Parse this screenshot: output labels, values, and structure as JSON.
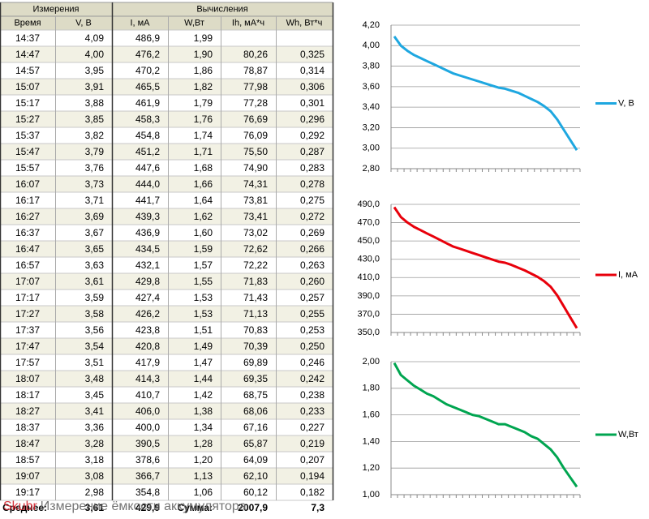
{
  "table": {
    "group_headers": [
      "Измерения",
      "Вычисления"
    ],
    "columns": [
      "Время",
      "V, В",
      "I, мА",
      "W,Вт",
      "Ih, мА*ч",
      "Wh, Вт*ч"
    ],
    "rows": [
      [
        "14:37",
        "4,09",
        "486,9",
        "1,99",
        null,
        null
      ],
      [
        "14:47",
        "4,00",
        "476,2",
        "1,90",
        "80,26",
        "0,325"
      ],
      [
        "14:57",
        "3,95",
        "470,2",
        "1,86",
        "78,87",
        "0,314"
      ],
      [
        "15:07",
        "3,91",
        "465,5",
        "1,82",
        "77,98",
        "0,306"
      ],
      [
        "15:17",
        "3,88",
        "461,9",
        "1,79",
        "77,28",
        "0,301"
      ],
      [
        "15:27",
        "3,85",
        "458,3",
        "1,76",
        "76,69",
        "0,296"
      ],
      [
        "15:37",
        "3,82",
        "454,8",
        "1,74",
        "76,09",
        "0,292"
      ],
      [
        "15:47",
        "3,79",
        "451,2",
        "1,71",
        "75,50",
        "0,287"
      ],
      [
        "15:57",
        "3,76",
        "447,6",
        "1,68",
        "74,90",
        "0,283"
      ],
      [
        "16:07",
        "3,73",
        "444,0",
        "1,66",
        "74,31",
        "0,278"
      ],
      [
        "16:17",
        "3,71",
        "441,7",
        "1,64",
        "73,81",
        "0,275"
      ],
      [
        "16:27",
        "3,69",
        "439,3",
        "1,62",
        "73,41",
        "0,272"
      ],
      [
        "16:37",
        "3,67",
        "436,9",
        "1,60",
        "73,02",
        "0,269"
      ],
      [
        "16:47",
        "3,65",
        "434,5",
        "1,59",
        "72,62",
        "0,266"
      ],
      [
        "16:57",
        "3,63",
        "432,1",
        "1,57",
        "72,22",
        "0,263"
      ],
      [
        "17:07",
        "3,61",
        "429,8",
        "1,55",
        "71,83",
        "0,260"
      ],
      [
        "17:17",
        "3,59",
        "427,4",
        "1,53",
        "71,43",
        "0,257"
      ],
      [
        "17:27",
        "3,58",
        "426,2",
        "1,53",
        "71,13",
        "0,255"
      ],
      [
        "17:37",
        "3,56",
        "423,8",
        "1,51",
        "70,83",
        "0,253"
      ],
      [
        "17:47",
        "3,54",
        "420,8",
        "1,49",
        "70,39",
        "0,250"
      ],
      [
        "17:57",
        "3,51",
        "417,9",
        "1,47",
        "69,89",
        "0,246"
      ],
      [
        "18:07",
        "3,48",
        "414,3",
        "1,44",
        "69,35",
        "0,242"
      ],
      [
        "18:17",
        "3,45",
        "410,7",
        "1,42",
        "68,75",
        "0,238"
      ],
      [
        "18:27",
        "3,41",
        "406,0",
        "1,38",
        "68,06",
        "0,233"
      ],
      [
        "18:37",
        "3,36",
        "400,0",
        "1,34",
        "67,16",
        "0,227"
      ],
      [
        "18:47",
        "3,28",
        "390,5",
        "1,28",
        "65,87",
        "0,219"
      ],
      [
        "18:57",
        "3,18",
        "378,6",
        "1,20",
        "64,09",
        "0,207"
      ],
      [
        "19:07",
        "3,08",
        "366,7",
        "1,13",
        "62,10",
        "0,194"
      ],
      [
        "19:17",
        "2,98",
        "354,8",
        "1,06",
        "60,12",
        "0,182"
      ]
    ],
    "footer": [
      "Среднее:",
      "3,61",
      "429,9",
      "Сумма:",
      "2007,9",
      "7,3"
    ]
  },
  "watermark": {
    "brand": "Skubr",
    "text": "Измерение ёмкости аккумулятора"
  },
  "chart_data": [
    {
      "type": "line",
      "categories": [
        null,
        null,
        null,
        null,
        null,
        null,
        null,
        null,
        null,
        null,
        null,
        null,
        null,
        null,
        null,
        null,
        null,
        null,
        null,
        null,
        null,
        null,
        null,
        null,
        null,
        null,
        null,
        null,
        null
      ],
      "series": [
        {
          "name": "V, В",
          "color": "#1ea7e0",
          "values": [
            4.09,
            4.0,
            3.95,
            3.91,
            3.88,
            3.85,
            3.82,
            3.79,
            3.76,
            3.73,
            3.71,
            3.69,
            3.67,
            3.65,
            3.63,
            3.61,
            3.59,
            3.58,
            3.56,
            3.54,
            3.51,
            3.48,
            3.45,
            3.41,
            3.36,
            3.28,
            3.18,
            3.08,
            2.98
          ]
        }
      ],
      "ylim": [
        2.8,
        4.2
      ],
      "yticks": [
        {
          "value": 2.8,
          "label": "2,80"
        },
        {
          "value": 3.0,
          "label": "3,00"
        },
        {
          "value": 3.2,
          "label": "3,20"
        },
        {
          "value": 3.4,
          "label": "3,40"
        },
        {
          "value": 3.6,
          "label": "3,60"
        },
        {
          "value": 3.8,
          "label": "3,80"
        },
        {
          "value": 4.0,
          "label": "4,00"
        },
        {
          "value": 4.2,
          "label": "4,20"
        }
      ],
      "grid": true,
      "legend": "right"
    },
    {
      "type": "line",
      "categories": [
        null,
        null,
        null,
        null,
        null,
        null,
        null,
        null,
        null,
        null,
        null,
        null,
        null,
        null,
        null,
        null,
        null,
        null,
        null,
        null,
        null,
        null,
        null,
        null,
        null,
        null,
        null,
        null,
        null
      ],
      "series": [
        {
          "name": "I, мА",
          "color": "#e8000b",
          "values": [
            486.9,
            476.2,
            470.2,
            465.5,
            461.9,
            458.3,
            454.8,
            451.2,
            447.6,
            444.0,
            441.7,
            439.3,
            436.9,
            434.5,
            432.1,
            429.8,
            427.4,
            426.2,
            423.8,
            420.8,
            417.9,
            414.3,
            410.7,
            406.0,
            400.0,
            390.5,
            378.6,
            366.7,
            354.8
          ]
        }
      ],
      "ylim": [
        350,
        490
      ],
      "yticks": [
        {
          "value": 350,
          "label": "350,0"
        },
        {
          "value": 370,
          "label": "370,0"
        },
        {
          "value": 390,
          "label": "390,0"
        },
        {
          "value": 410,
          "label": "410,0"
        },
        {
          "value": 430,
          "label": "430,0"
        },
        {
          "value": 450,
          "label": "450,0"
        },
        {
          "value": 470,
          "label": "470,0"
        },
        {
          "value": 490,
          "label": "490,0"
        }
      ],
      "grid": true,
      "legend": "right"
    },
    {
      "type": "line",
      "categories": [
        null,
        null,
        null,
        null,
        null,
        null,
        null,
        null,
        null,
        null,
        null,
        null,
        null,
        null,
        null,
        null,
        null,
        null,
        null,
        null,
        null,
        null,
        null,
        null,
        null,
        null,
        null,
        null,
        null
      ],
      "series": [
        {
          "name": "W,Вт",
          "color": "#00a550",
          "values": [
            1.99,
            1.9,
            1.86,
            1.82,
            1.79,
            1.76,
            1.74,
            1.71,
            1.68,
            1.66,
            1.64,
            1.62,
            1.6,
            1.59,
            1.57,
            1.55,
            1.53,
            1.53,
            1.51,
            1.49,
            1.47,
            1.44,
            1.42,
            1.38,
            1.34,
            1.28,
            1.2,
            1.13,
            1.06
          ]
        }
      ],
      "ylim": [
        1.0,
        2.0
      ],
      "yticks": [
        {
          "value": 1.0,
          "label": "1,00"
        },
        {
          "value": 1.2,
          "label": "1,20"
        },
        {
          "value": 1.4,
          "label": "1,40"
        },
        {
          "value": 1.6,
          "label": "1,60"
        },
        {
          "value": 1.8,
          "label": "1,80"
        },
        {
          "value": 2.0,
          "label": "2,00"
        }
      ],
      "grid": true,
      "legend": "right"
    }
  ]
}
